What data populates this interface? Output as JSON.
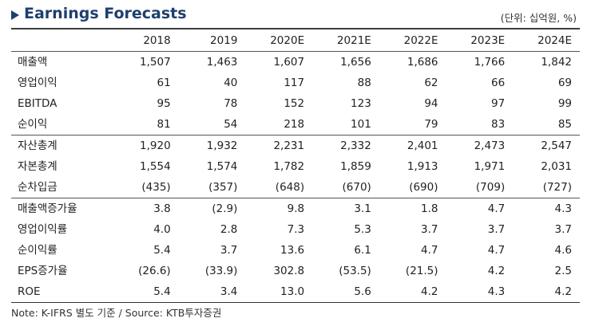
{
  "header": {
    "title": "Earnings Forecasts",
    "unit": "(단위: 십억원, %)"
  },
  "table": {
    "columns": [
      "",
      "2018",
      "2019",
      "2020E",
      "2021E",
      "2022E",
      "2023E",
      "2024E"
    ],
    "rows": [
      {
        "label": "매출액",
        "values": [
          "1,507",
          "1,463",
          "1,607",
          "1,656",
          "1,686",
          "1,766",
          "1,842"
        ]
      },
      {
        "label": "영업이익",
        "values": [
          "61",
          "40",
          "117",
          "88",
          "62",
          "66",
          "69"
        ]
      },
      {
        "label": "EBITDA",
        "values": [
          "95",
          "78",
          "152",
          "123",
          "94",
          "97",
          "99"
        ]
      },
      {
        "label": "순이익",
        "values": [
          "81",
          "54",
          "218",
          "101",
          "79",
          "83",
          "85"
        ]
      },
      {
        "label": "자산총계",
        "values": [
          "1,920",
          "1,932",
          "2,231",
          "2,332",
          "2,401",
          "2,473",
          "2,547"
        ]
      },
      {
        "label": "자본총계",
        "values": [
          "1,554",
          "1,574",
          "1,782",
          "1,859",
          "1,913",
          "1,971",
          "2,031"
        ]
      },
      {
        "label": "순차입금",
        "values": [
          "(435)",
          "(357)",
          "(648)",
          "(670)",
          "(690)",
          "(709)",
          "(727)"
        ]
      },
      {
        "label": "매출액증가율",
        "values": [
          "3.8",
          "(2.9)",
          "9.8",
          "3.1",
          "1.8",
          "4.7",
          "4.3"
        ]
      },
      {
        "label": "영업이익률",
        "values": [
          "4.0",
          "2.8",
          "7.3",
          "5.3",
          "3.7",
          "3.7",
          "3.7"
        ]
      },
      {
        "label": "순이익률",
        "values": [
          "5.4",
          "3.7",
          "13.6",
          "6.1",
          "4.7",
          "4.7",
          "4.6"
        ]
      },
      {
        "label": "EPS증가율",
        "values": [
          "(26.6)",
          "(33.9)",
          "302.8",
          "(53.5)",
          "(21.5)",
          "4.2",
          "2.5"
        ]
      },
      {
        "label": "ROE",
        "values": [
          "5.4",
          "3.4",
          "13.0",
          "5.6",
          "4.2",
          "4.3",
          "4.2"
        ]
      }
    ]
  },
  "note": "Note: K-IFRS 별도 기준 / Source: KTB투자증권",
  "colors": {
    "title": "#1f3f6e",
    "rule": "#3c3c3c"
  }
}
